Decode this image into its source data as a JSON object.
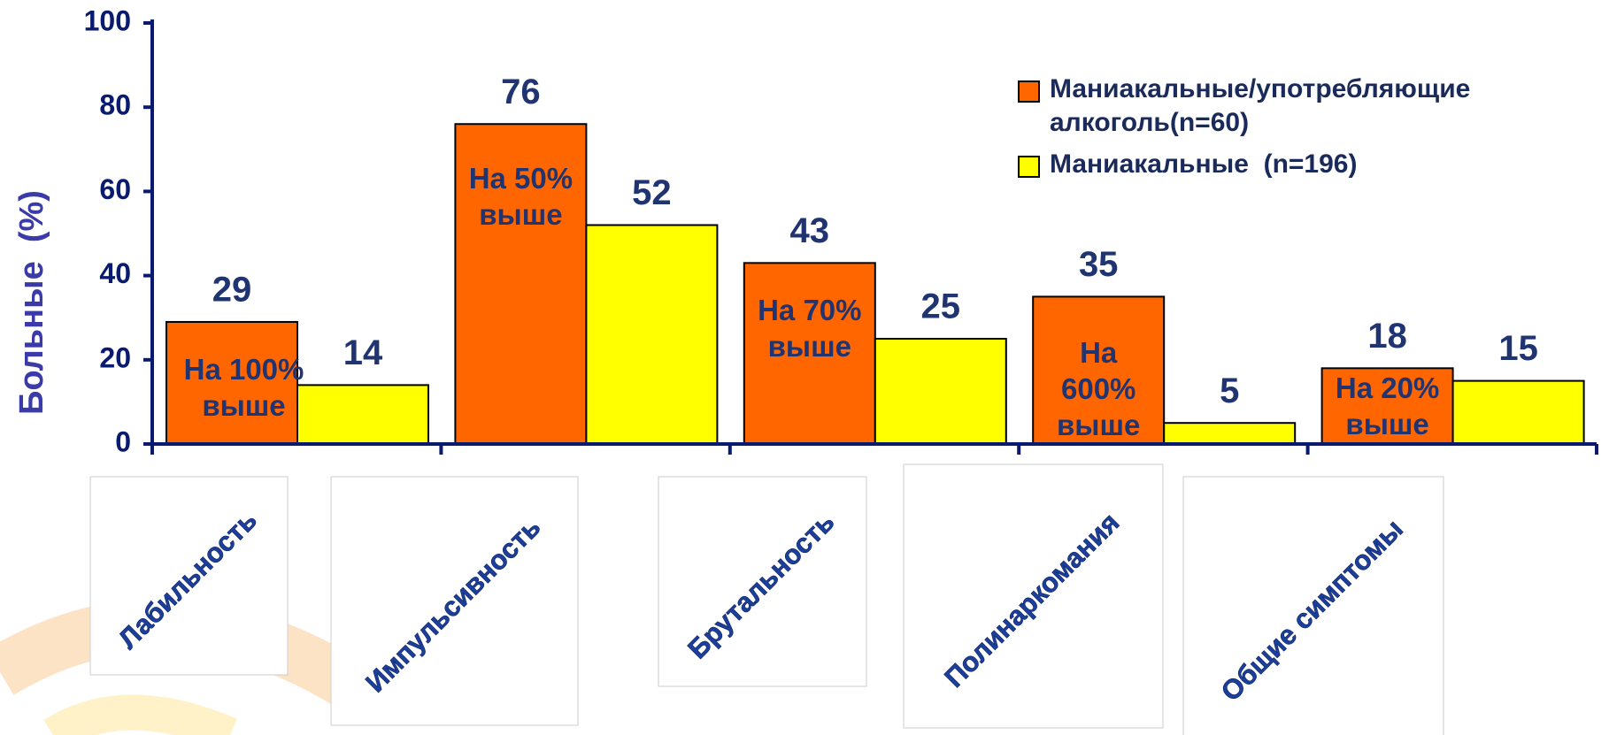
{
  "chart_data": {
    "type": "bar",
    "y_label": "Больные  (%)",
    "categories": [
      "Лабильность",
      "Импульсивность",
      "Брутальность",
      "Полинаркомания",
      "Общие симптомы"
    ],
    "series": [
      {
        "name": "Маниакальные/употребляющие алкоголь(n=60)",
        "color": "#ff6600",
        "values": [
          29,
          76,
          43,
          35,
          18
        ]
      },
      {
        "name": "Маниакальные  (n=196)",
        "color": "#ffff00",
        "values": [
          14,
          52,
          25,
          5,
          15
        ]
      }
    ],
    "annotations": [
      "На 100% выше",
      "На 50% выше",
      "На 70% выше",
      "На 600% выше",
      "На 20% выше"
    ],
    "ylim": [
      0,
      100
    ],
    "yticks": [
      0,
      20,
      40,
      60,
      80,
      100
    ],
    "legend": "upper right"
  }
}
